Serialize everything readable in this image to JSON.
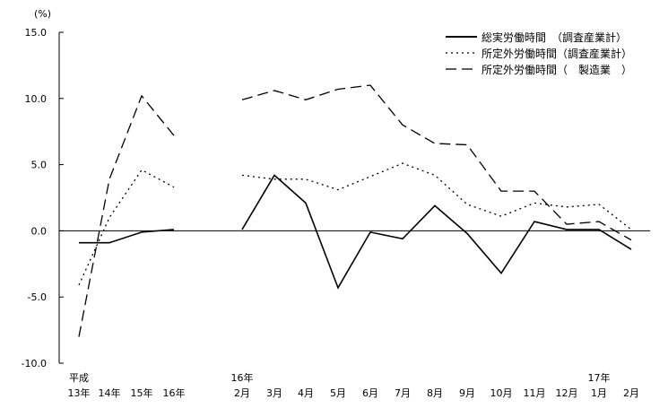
{
  "chart_data": {
    "type": "line",
    "ylabel": "(%)",
    "ylim": [
      -10,
      15
    ],
    "yticks": [
      15,
      10,
      5,
      0,
      -5,
      -10
    ],
    "ytick_labels": [
      "15.0",
      "10.0",
      "5.0",
      "0.0",
      "-5.0",
      "-10.0"
    ],
    "grid": false,
    "legend_position": "top-right",
    "annual_categories": [
      "13年",
      "14年",
      "15年",
      "16年"
    ],
    "annual_group_label": "平成",
    "monthly_categories": [
      "2月",
      "3月",
      "4月",
      "5月",
      "6月",
      "7月",
      "8月",
      "9月",
      "10月",
      "11月",
      "12月",
      "1月",
      "2月"
    ],
    "monthly_year_labels": [
      {
        "index": 0,
        "label": "16年"
      },
      {
        "index": 11,
        "label": "17年"
      }
    ],
    "series": [
      {
        "name": "総実労働時間　（調査産業計）",
        "style": "solid",
        "annual": [
          -0.9,
          -0.9,
          -0.1,
          0.1
        ],
        "monthly": [
          0.1,
          4.2,
          2.1,
          -4.3,
          -0.1,
          -0.6,
          1.9,
          -0.2,
          -3.2,
          0.7,
          0.1,
          0.1,
          -1.4
        ]
      },
      {
        "name": "所定外労働時間（調査産業計）",
        "style": "dotted",
        "annual": [
          -4.1,
          1.0,
          4.6,
          3.3
        ],
        "monthly": [
          4.2,
          3.9,
          3.9,
          3.1,
          4.1,
          5.1,
          4.2,
          2.0,
          1.1,
          2.1,
          1.8,
          2.0,
          0.1
        ]
      },
      {
        "name": "所定外労働時間（　製造業　）",
        "style": "dashed",
        "annual": [
          -8.0,
          3.9,
          10.2,
          7.2
        ],
        "monthly": [
          9.9,
          10.6,
          9.9,
          10.7,
          11.0,
          8.0,
          6.6,
          6.5,
          3.0,
          3.0,
          0.5,
          0.7,
          -0.7
        ]
      }
    ],
    "line_color": "#000000"
  }
}
